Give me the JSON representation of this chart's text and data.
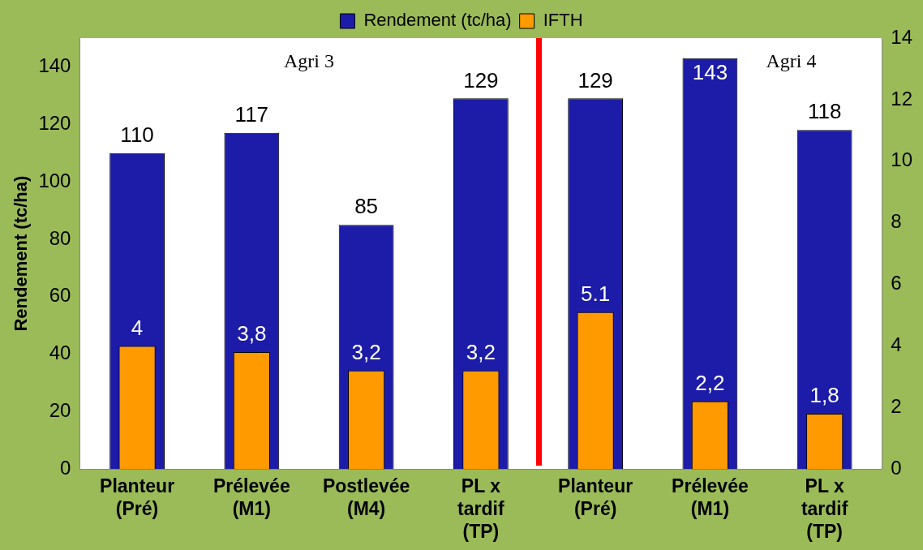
{
  "chart_data": {
    "type": "bar",
    "categories": [
      "Planteur (Pré)",
      "Prélevée (M1)",
      "Postlevée (M4)",
      "PL x tardif (TP)",
      "Planteur (Pré)",
      "Prélevée (M1)",
      "PL x tardif (TP)"
    ],
    "series": [
      {
        "name": "Rendement (tc/ha)",
        "color": "#1c1ca8",
        "values": [
          110,
          117,
          85,
          129,
          129,
          143,
          118
        ],
        "value_labels": [
          "110",
          "117",
          "85",
          "129",
          "129",
          "143",
          "118"
        ]
      },
      {
        "name": "IFTH",
        "color": "#ff9a00",
        "axis": "y2",
        "values": [
          4,
          3.8,
          3.2,
          3.2,
          5.1,
          2.2,
          1.8
        ],
        "value_labels": [
          "4",
          "3,8",
          "3,2",
          "3,2",
          "5.1",
          "2,2",
          "1,8"
        ]
      }
    ],
    "ylabel": "Rendement (tc/ha)",
    "ylim": [
      0,
      150
    ],
    "yticks": [
      0,
      20,
      40,
      60,
      80,
      100,
      120,
      140
    ],
    "y2lim": [
      0,
      14
    ],
    "y2ticks": [
      0,
      2,
      4,
      6,
      8,
      10,
      12,
      14
    ],
    "annotations": [
      "Agri 3",
      "Agri 4"
    ],
    "legend": "top"
  }
}
